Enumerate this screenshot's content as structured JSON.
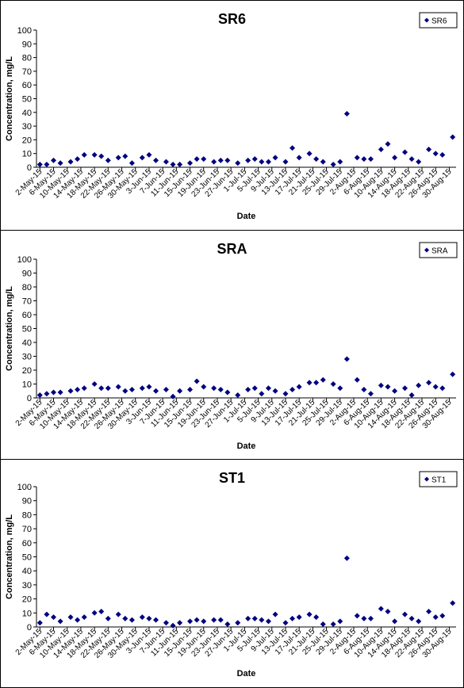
{
  "dates": [
    "2-May-15",
    "6-May-15",
    "10-May-15",
    "14-May-15",
    "18-May-15",
    "22-May-15",
    "26-May-15",
    "30-May-15",
    "3-Jun-15",
    "7-Jun-15",
    "11-Jun-15",
    "15-Jun-15",
    "19-Jun-15",
    "23-Jun-15",
    "27-Jun-15",
    "1-Jul-15",
    "5-Jul-15",
    "9-Jul-15",
    "13-Jul-15",
    "17-Jul-15",
    "21-Jul-15",
    "25-Jul-15",
    "29-Jul-15",
    "2-Aug-15",
    "6-Aug-15",
    "10-Aug-15",
    "14-Aug-15",
    "18-Aug-15",
    "22-Aug-15",
    "26-Aug-15",
    "30-Aug-15"
  ],
  "chart_data": [
    {
      "type": "scatter",
      "title": "SR6",
      "xlabel": "Date",
      "ylabel": "Concentration, mg/L",
      "ylim": [
        0,
        100
      ],
      "yticks": [
        0,
        10,
        20,
        30,
        40,
        50,
        60,
        70,
        80,
        90,
        100
      ],
      "xlim": [
        "1-May-15",
        "1-Sep-15"
      ],
      "legend_position": "top-right",
      "grid": false,
      "marker_color": "#000080",
      "series": [
        {
          "name": "SR6",
          "x": [
            "2-May-15",
            "4-May-15",
            "6-May-15",
            "8-May-15",
            "11-May-15",
            "13-May-15",
            "15-May-15",
            "18-May-15",
            "20-May-15",
            "22-May-15",
            "25-May-15",
            "27-May-15",
            "29-May-15",
            "1-Jun-15",
            "3-Jun-15",
            "5-Jun-15",
            "8-Jun-15",
            "10-Jun-15",
            "12-Jun-15",
            "15-Jun-15",
            "17-Jun-15",
            "19-Jun-15",
            "22-Jun-15",
            "24-Jun-15",
            "26-Jun-15",
            "29-Jun-15",
            "2-Jul-15",
            "4-Jul-15",
            "6-Jul-15",
            "8-Jul-15",
            "10-Jul-15",
            "13-Jul-15",
            "15-Jul-15",
            "17-Jul-15",
            "20-Jul-15",
            "22-Jul-15",
            "24-Jul-15",
            "27-Jul-15",
            "29-Jul-15",
            "31-Jul-15",
            "3-Aug-15",
            "5-Aug-15",
            "7-Aug-15",
            "10-Aug-15",
            "12-Aug-15",
            "14-Aug-15",
            "17-Aug-15",
            "19-Aug-15",
            "21-Aug-15",
            "24-Aug-15",
            "26-Aug-15",
            "28-Aug-15",
            "31-Aug-15"
          ],
          "y": [
            2,
            2,
            5,
            3,
            4,
            6,
            9,
            9,
            8,
            5,
            7,
            8,
            3,
            7,
            9,
            5,
            4,
            2,
            2,
            3,
            6,
            6,
            4,
            5,
            5,
            3,
            5,
            6,
            4,
            4,
            7,
            4,
            14,
            7,
            10,
            6,
            4,
            2,
            4,
            39,
            7,
            6,
            6,
            13,
            17,
            7,
            11,
            6,
            4,
            13,
            10,
            9,
            22
          ]
        }
      ]
    },
    {
      "type": "scatter",
      "title": "SRA",
      "xlabel": "Date",
      "ylabel": "Concentration, mg/L",
      "ylim": [
        0,
        100
      ],
      "yticks": [
        0,
        10,
        20,
        30,
        40,
        50,
        60,
        70,
        80,
        90,
        100
      ],
      "xlim": [
        "1-May-15",
        "1-Sep-15"
      ],
      "legend_position": "top-right",
      "grid": false,
      "marker_color": "#000080",
      "series": [
        {
          "name": "SRA",
          "x": [
            "2-May-15",
            "4-May-15",
            "6-May-15",
            "8-May-15",
            "11-May-15",
            "13-May-15",
            "15-May-15",
            "18-May-15",
            "20-May-15",
            "22-May-15",
            "25-May-15",
            "27-May-15",
            "29-May-15",
            "1-Jun-15",
            "3-Jun-15",
            "5-Jun-15",
            "8-Jun-15",
            "10-Jun-15",
            "12-Jun-15",
            "15-Jun-15",
            "17-Jun-15",
            "19-Jun-15",
            "22-Jun-15",
            "24-Jun-15",
            "26-Jun-15",
            "29-Jun-15",
            "2-Jul-15",
            "4-Jul-15",
            "6-Jul-15",
            "8-Jul-15",
            "10-Jul-15",
            "13-Jul-15",
            "15-Jul-15",
            "17-Jul-15",
            "20-Jul-15",
            "22-Jul-15",
            "24-Jul-15",
            "27-Jul-15",
            "29-Jul-15",
            "31-Jul-15",
            "3-Aug-15",
            "5-Aug-15",
            "7-Aug-15",
            "10-Aug-15",
            "12-Aug-15",
            "14-Aug-15",
            "17-Aug-15",
            "19-Aug-15",
            "21-Aug-15",
            "24-Aug-15",
            "26-Aug-15",
            "28-Aug-15",
            "31-Aug-15"
          ],
          "y": [
            2,
            3,
            4,
            4,
            5,
            6,
            7,
            10,
            7,
            7,
            8,
            5,
            6,
            7,
            8,
            5,
            6,
            1,
            5,
            6,
            12,
            8,
            7,
            6,
            4,
            2,
            6,
            7,
            3,
            7,
            5,
            3,
            6,
            8,
            11,
            11,
            13,
            10,
            7,
            28,
            13,
            6,
            3,
            9,
            8,
            5,
            7,
            2,
            9,
            11,
            8,
            7,
            17
          ]
        }
      ]
    },
    {
      "type": "scatter",
      "title": "ST1",
      "xlabel": "Date",
      "ylabel": "Concentration, mg/L",
      "ylim": [
        0,
        100
      ],
      "yticks": [
        0,
        10,
        20,
        30,
        40,
        50,
        60,
        70,
        80,
        90,
        100
      ],
      "xlim": [
        "1-May-15",
        "1-Sep-15"
      ],
      "legend_position": "top-right",
      "grid": false,
      "marker_color": "#000080",
      "series": [
        {
          "name": "ST1",
          "x": [
            "2-May-15",
            "4-May-15",
            "6-May-15",
            "8-May-15",
            "11-May-15",
            "13-May-15",
            "15-May-15",
            "18-May-15",
            "20-May-15",
            "22-May-15",
            "25-May-15",
            "27-May-15",
            "29-May-15",
            "1-Jun-15",
            "3-Jun-15",
            "5-Jun-15",
            "8-Jun-15",
            "10-Jun-15",
            "12-Jun-15",
            "15-Jun-15",
            "17-Jun-15",
            "19-Jun-15",
            "22-Jun-15",
            "24-Jun-15",
            "26-Jun-15",
            "29-Jun-15",
            "2-Jul-15",
            "4-Jul-15",
            "6-Jul-15",
            "8-Jul-15",
            "10-Jul-15",
            "13-Jul-15",
            "15-Jul-15",
            "17-Jul-15",
            "20-Jul-15",
            "22-Jul-15",
            "24-Jul-15",
            "27-Jul-15",
            "29-Jul-15",
            "31-Jul-15",
            "3-Aug-15",
            "5-Aug-15",
            "7-Aug-15",
            "10-Aug-15",
            "12-Aug-15",
            "14-Aug-15",
            "17-Aug-15",
            "19-Aug-15",
            "21-Aug-15",
            "24-Aug-15",
            "26-Aug-15",
            "28-Aug-15",
            "31-Aug-15"
          ],
          "y": [
            3,
            9,
            7,
            4,
            7,
            5,
            7,
            10,
            11,
            6,
            9,
            6,
            5,
            7,
            6,
            5,
            3,
            1,
            3,
            4,
            5,
            4,
            5,
            5,
            2,
            3,
            6,
            6,
            5,
            4,
            9,
            3,
            6,
            7,
            9,
            7,
            2,
            2,
            4,
            49,
            8,
            6,
            6,
            13,
            11,
            4,
            9,
            6,
            4,
            11,
            7,
            8,
            17
          ]
        }
      ]
    }
  ]
}
